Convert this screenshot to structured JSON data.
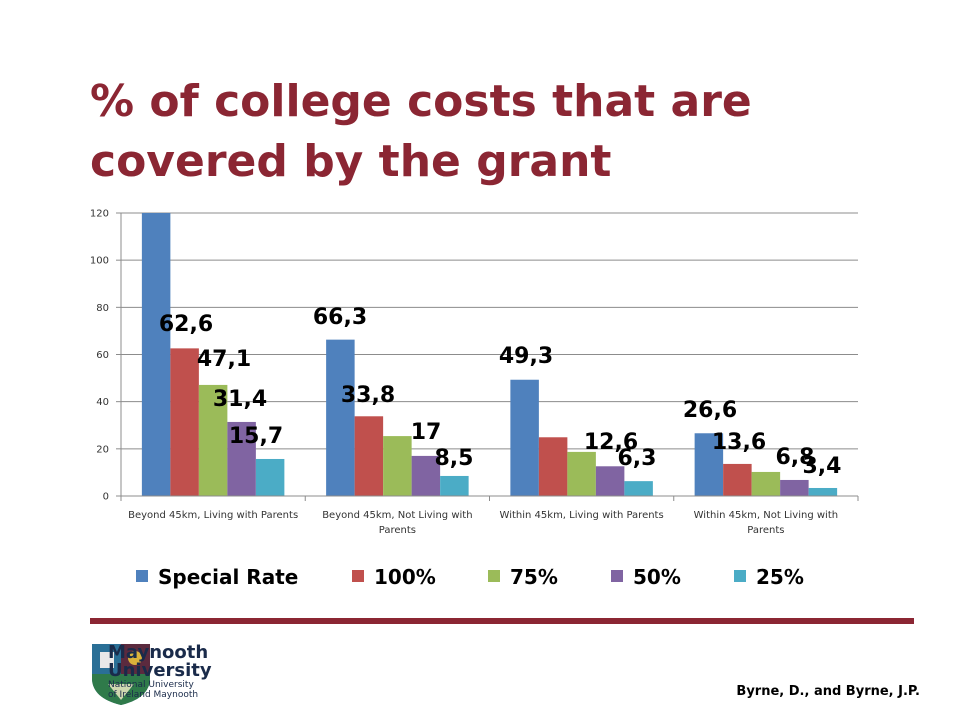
{
  "slide": {
    "title": "% of college costs that are covered by the grant",
    "citation": "Byrne, D., and Byrne, J.P."
  },
  "logo": {
    "name_line1": "Maynooth",
    "name_line2": "University",
    "sub_line1": "National University",
    "sub_line2": "of Ireland Maynooth"
  },
  "chart_data": {
    "type": "bar",
    "title": "",
    "xlabel": "",
    "ylabel": "",
    "ylim": [
      0,
      120
    ],
    "yticks": [
      0,
      20,
      40,
      60,
      80,
      100,
      120
    ],
    "grid": true,
    "legend_position": "bottom",
    "categories": [
      "Beyond 45km, Living with Parents",
      "Beyond 45km, Not Living with Parents",
      "Within 45km, Living with Parents",
      "Within 45km, Not Living with Parents"
    ],
    "series": [
      {
        "name": "Special Rate",
        "color": "#4F81BD",
        "values": [
          125.3,
          66.3,
          49.3,
          26.6
        ],
        "labels": [
          "",
          "66,3",
          "49,3",
          "26,6"
        ]
      },
      {
        "name": "100%",
        "color": "#C0504D",
        "values": [
          62.6,
          33.8,
          24.9,
          13.6
        ],
        "labels": [
          "62,6",
          "33,8",
          "",
          "13,6"
        ]
      },
      {
        "name": "75%",
        "color": "#9BBB59",
        "values": [
          47.1,
          25.4,
          18.7,
          10.2
        ],
        "labels": [
          "47,1",
          "",
          "",
          ""
        ]
      },
      {
        "name": "50%",
        "color": "#8064A2",
        "values": [
          31.4,
          17,
          12.6,
          6.8
        ],
        "labels": [
          "31,4",
          "17",
          "12,6",
          "6,8"
        ]
      },
      {
        "name": "25%",
        "color": "#4BACC6",
        "values": [
          15.7,
          8.5,
          6.3,
          3.4
        ],
        "labels": [
          "15,7",
          "8,5",
          "6,3",
          "3,4"
        ]
      }
    ]
  }
}
